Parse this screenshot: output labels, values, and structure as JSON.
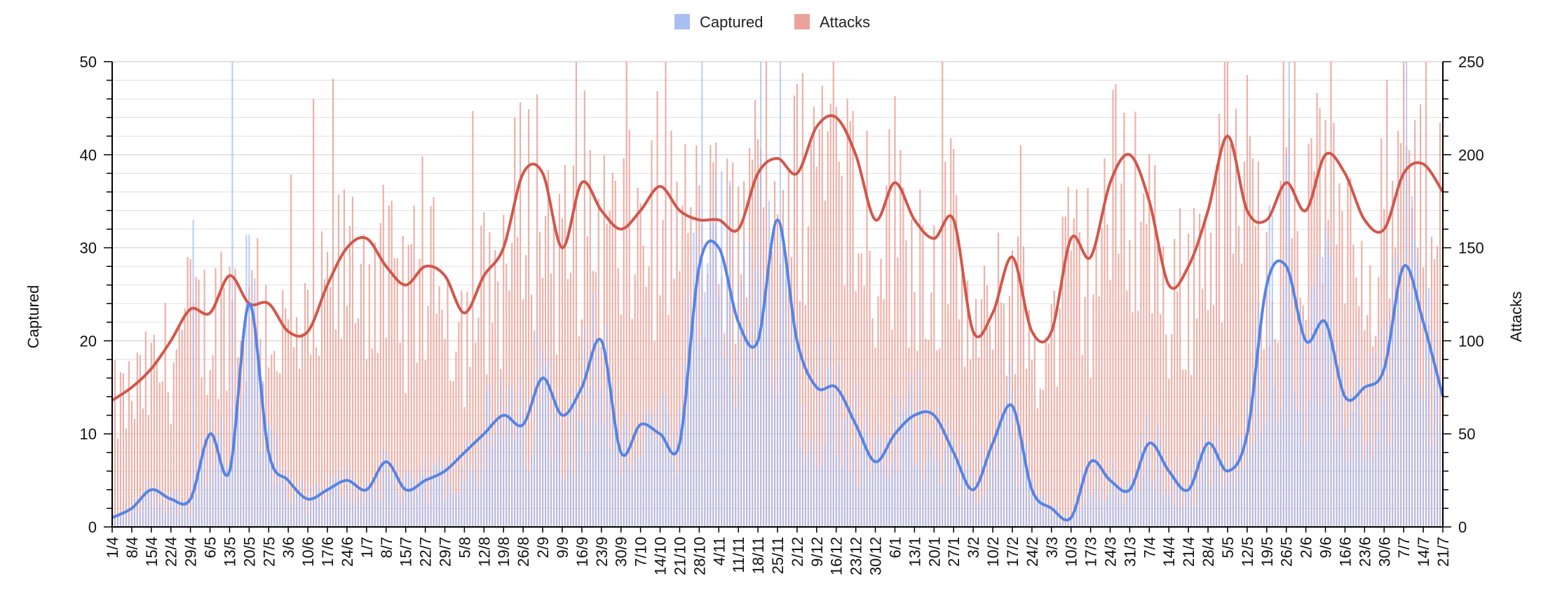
{
  "colors": {
    "captured_bar": "#a9bef2",
    "captured_line": "#5584e6",
    "attacks_bar": "#e9a39a",
    "attacks_line": "#d2574b",
    "grid": "#d9d9d9",
    "axis": "#000000"
  },
  "chart_data": {
    "type": "bar",
    "combo": "bars with moving-average lines, dual y-axis",
    "legend": [
      "Captured",
      "Attacks"
    ],
    "legend_position": "top-center",
    "ylabel_left": "Captured",
    "ylabel_right": "Attacks",
    "ylim_left": [
      0,
      50
    ],
    "ylim_right": [
      0,
      250
    ],
    "yticks_left": [
      "0",
      "10",
      "20",
      "30",
      "40",
      "50"
    ],
    "yticks_right": [
      "0",
      "50",
      "100",
      "150",
      "200",
      "250"
    ],
    "x_tick_labels": [
      "1/4",
      "8/4",
      "15/4",
      "22/4",
      "29/4",
      "6/5",
      "13/5",
      "20/5",
      "27/5",
      "3/6",
      "10/6",
      "17/6",
      "24/6",
      "1/7",
      "8/7",
      "15/7",
      "22/7",
      "29/7",
      "5/8",
      "12/8",
      "19/8",
      "26/8",
      "2/9",
      "9/9",
      "16/9",
      "23/9",
      "30/9",
      "7/10",
      "14/10",
      "21/10",
      "28/10",
      "4/11",
      "11/11",
      "18/11",
      "25/11",
      "2/12",
      "9/12",
      "16/12",
      "23/12",
      "30/12",
      "6/1",
      "13/1",
      "20/1",
      "27/1",
      "3/2",
      "10/2",
      "17/2",
      "24/2",
      "3/3",
      "10/3",
      "17/3",
      "24/3",
      "31/3",
      "7/4",
      "14/4",
      "21/4",
      "28/4",
      "5/5",
      "12/5",
      "19/5",
      "26/5",
      "2/6",
      "9/6",
      "16/6",
      "23/6",
      "30/6",
      "7/7",
      "14/7",
      "21/7"
    ],
    "series": [
      {
        "name": "Captured",
        "axis": "left",
        "weekly_avg": [
          1,
          2,
          4,
          3,
          3,
          10,
          6,
          24,
          8,
          5,
          3,
          4,
          5,
          4,
          7,
          4,
          5,
          6,
          8,
          10,
          12,
          11,
          16,
          12,
          15,
          20,
          8,
          11,
          10,
          9,
          28,
          30,
          22,
          20,
          33,
          20,
          15,
          15,
          11,
          7,
          10,
          12,
          12,
          8,
          4,
          9,
          13,
          4,
          2,
          1,
          7,
          5,
          4,
          9,
          6,
          4,
          9,
          6,
          10,
          26,
          28,
          20,
          22,
          14,
          15,
          17,
          28,
          22,
          14
        ],
        "notable_spikes": [
          {
            "week": "13/5",
            "value": 50
          },
          {
            "week": "29/4",
            "value": 33
          },
          {
            "week": "28/10",
            "value": 50
          },
          {
            "week": "18/11",
            "value": 50
          },
          {
            "week": "25/11",
            "value": 50
          },
          {
            "week": "26/5",
            "value": 50
          },
          {
            "week": "7/7",
            "value": 50
          }
        ]
      },
      {
        "name": "Attacks",
        "axis": "right",
        "weekly_avg": [
          68,
          75,
          85,
          100,
          117,
          115,
          135,
          120,
          120,
          105,
          105,
          130,
          150,
          155,
          140,
          130,
          140,
          135,
          115,
          135,
          150,
          190,
          190,
          150,
          185,
          170,
          160,
          170,
          183,
          170,
          165,
          165,
          160,
          190,
          198,
          190,
          215,
          220,
          200,
          165,
          185,
          165,
          155,
          165,
          105,
          115,
          145,
          105,
          105,
          155,
          145,
          185,
          200,
          175,
          130,
          140,
          170,
          210,
          170,
          165,
          185,
          170,
          200,
          190,
          165,
          160,
          190,
          195,
          180
        ]
      }
    ]
  }
}
